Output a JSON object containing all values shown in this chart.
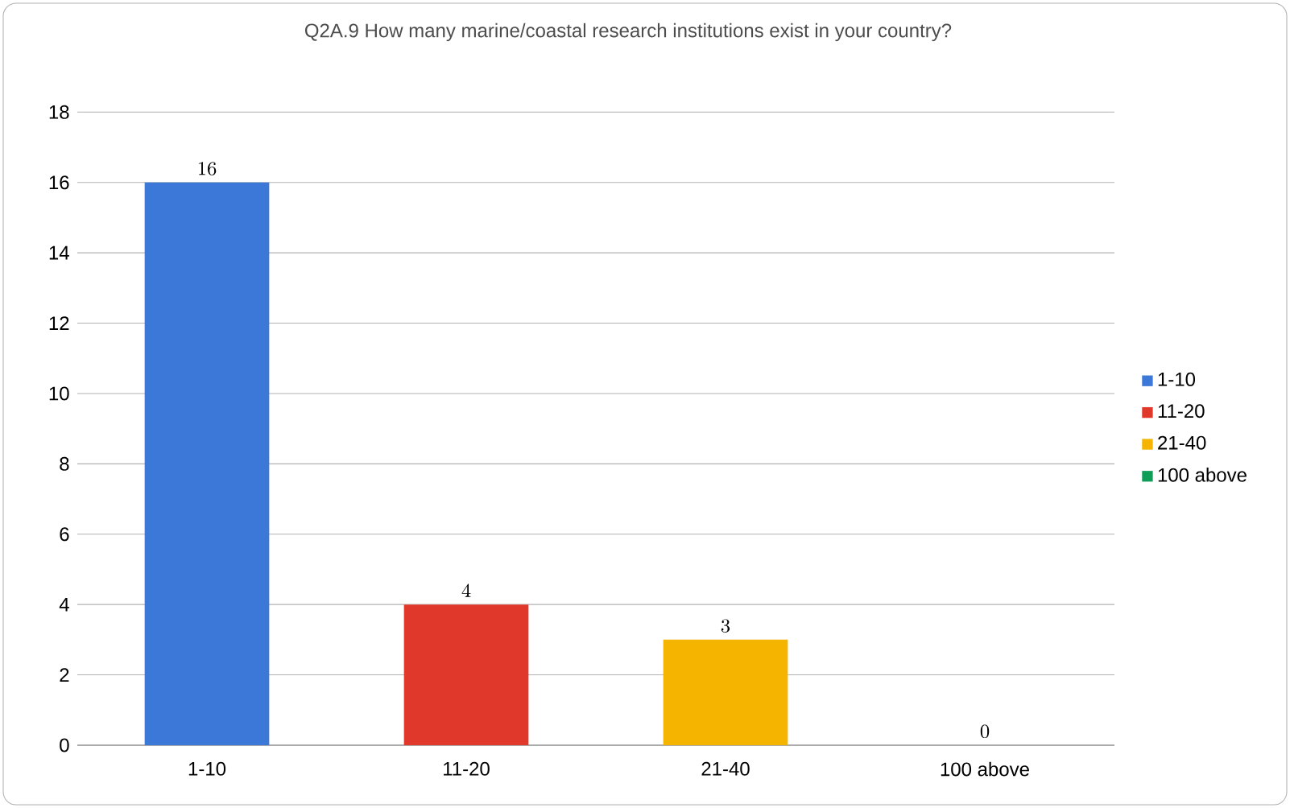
{
  "chart_data": {
    "type": "bar",
    "title": "Q2A.9 How many marine/coastal research institutions exist in your country?",
    "categories": [
      "1-10",
      "11-20",
      "21-40",
      "100 above"
    ],
    "series": [
      {
        "name": "1-10",
        "color": "#3c78d8",
        "values": [
          16,
          null,
          null,
          null
        ]
      },
      {
        "name": "11-20",
        "color": "#e0392b",
        "values": [
          null,
          4,
          null,
          null
        ]
      },
      {
        "name": "21-40",
        "color": "#f4b400",
        "values": [
          null,
          null,
          3,
          null
        ]
      },
      {
        "name": "100 above",
        "color": "#0f9d58",
        "values": [
          null,
          null,
          null,
          0
        ]
      }
    ],
    "ylim": [
      0,
      18
    ],
    "yticks": [
      0,
      2,
      4,
      6,
      8,
      10,
      12,
      14,
      16,
      18
    ],
    "grid": "y",
    "legend": "right",
    "data_labels": true
  }
}
